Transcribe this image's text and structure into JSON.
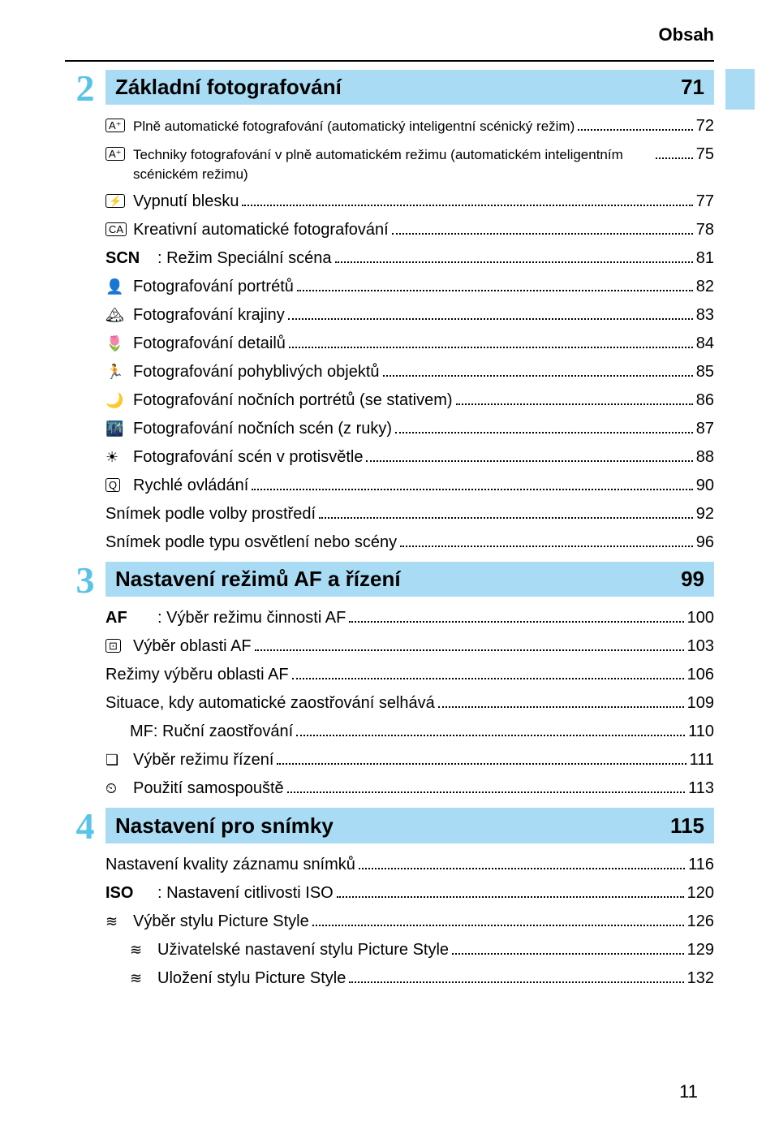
{
  "header": "Obsah",
  "footer_page": "11",
  "colors": {
    "accent_light": "#a9dcf4",
    "accent_number": "#59c3e8",
    "text": "#000000",
    "background": "#ffffff"
  },
  "sections": [
    {
      "number": "2",
      "title": "Základní fotografování",
      "page": "71",
      "items": [
        {
          "icon": "A⁺",
          "icon_type": "box",
          "text": "Plně automatické fotografování (automatický inteligentní scénický režim)",
          "page": "72",
          "small": true
        },
        {
          "icon": "A⁺",
          "icon_type": "box",
          "text": "Techniky fotografování v plně automatickém režimu (automatickém inteligentním scénickém režimu)",
          "page": "75",
          "small": true
        },
        {
          "icon": "⚡",
          "icon_type": "box",
          "text": "Vypnutí blesku",
          "page": "77"
        },
        {
          "icon": "CA",
          "icon_type": "box",
          "text": "Kreativní automatické fotografování",
          "page": "78"
        },
        {
          "icon": "SCN",
          "icon_type": "wide",
          "text": ": Režim Speciální scéna",
          "page": "81"
        },
        {
          "icon": "👤",
          "icon_type": "glyph",
          "text": "Fotografování portrétů",
          "page": "82"
        },
        {
          "icon": "🏔",
          "icon_type": "glyph",
          "text": "Fotografování krajiny",
          "page": "83"
        },
        {
          "icon": "🌷",
          "icon_type": "glyph",
          "text": "Fotografování detailů",
          "page": "84"
        },
        {
          "icon": "🏃",
          "icon_type": "glyph",
          "text": "Fotografování pohyblivých objektů",
          "page": "85"
        },
        {
          "icon": "🌙",
          "icon_type": "glyph",
          "text": "Fotografování nočních portrétů (se stativem)",
          "page": "86"
        },
        {
          "icon": "🌃",
          "icon_type": "glyph",
          "text": "Fotografování nočních scén (z ruky)",
          "page": "87"
        },
        {
          "icon": "☀",
          "icon_type": "glyph",
          "text": "Fotografování scén v protisvětle",
          "page": "88"
        },
        {
          "icon": "Q",
          "icon_type": "box",
          "text": "Rychlé ovládání",
          "page": "90"
        },
        {
          "icon": "",
          "icon_type": "none",
          "text": "Snímek podle volby prostředí",
          "page": "92"
        },
        {
          "icon": "",
          "icon_type": "none",
          "text": "Snímek podle typu osvětlení nebo scény",
          "page": "96"
        }
      ]
    },
    {
      "number": "3",
      "title": "Nastavení režimů AF a řízení",
      "page": "99",
      "items": [
        {
          "icon": "AF",
          "icon_type": "wide",
          "text": ": Výběr režimu činnosti AF",
          "page": "100"
        },
        {
          "icon": "⊡",
          "icon_type": "box",
          "text": "Výběr oblasti AF",
          "page": "103"
        },
        {
          "icon": "",
          "icon_type": "none",
          "text": "Režimy výběru oblasti AF",
          "page": "106"
        },
        {
          "icon": "",
          "icon_type": "none",
          "text": "Situace, kdy automatické zaostřování selhává",
          "page": "109"
        },
        {
          "icon": "",
          "icon_type": "indent",
          "text": "MF: Ruční zaostřování",
          "page": "110"
        },
        {
          "icon": "❏",
          "icon_type": "glyph",
          "text": "Výběr režimu řízení",
          "page": "111"
        },
        {
          "icon": "⏲",
          "icon_type": "glyph",
          "text": "Použití samospouště",
          "page": "113"
        }
      ]
    },
    {
      "number": "4",
      "title": "Nastavení pro snímky",
      "page": "115",
      "items": [
        {
          "icon": "",
          "icon_type": "none",
          "text": "Nastavení kvality záznamu snímků",
          "page": "116"
        },
        {
          "icon": "ISO",
          "icon_type": "wide",
          "text": ": Nastavení citlivosti ISO",
          "page": "120"
        },
        {
          "icon": "≋",
          "icon_type": "glyph",
          "text": "Výběr stylu Picture Style",
          "page": "126"
        },
        {
          "icon": "≋",
          "icon_type": "glyph",
          "text": "Uživatelské nastavení stylu Picture Style",
          "page": "129",
          "indent": true
        },
        {
          "icon": "≋",
          "icon_type": "glyph",
          "text": "Uložení stylu Picture Style",
          "page": "132",
          "indent": true
        }
      ]
    }
  ]
}
